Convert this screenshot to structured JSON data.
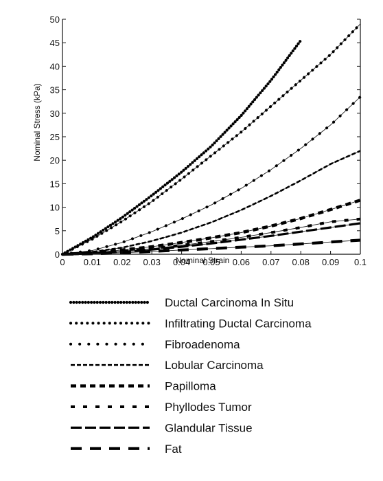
{
  "chart_data": {
    "type": "line",
    "title": "",
    "xlabel": "Nominal Strain",
    "ylabel": "Nominal Stress (kPa)",
    "xlim": [
      0,
      0.1
    ],
    "ylim": [
      0,
      50
    ],
    "x_ticks": [
      0,
      0.01,
      0.02,
      0.03,
      0.04,
      0.05,
      0.06,
      0.07,
      0.08,
      0.09,
      0.1
    ],
    "x_tick_labels": [
      "0",
      "0.01",
      "0.02",
      "0.03",
      "0.04",
      "0.05",
      "0.06",
      "0.07",
      "0.08",
      "0.09",
      "0.1"
    ],
    "y_ticks": [
      0,
      5,
      10,
      15,
      20,
      25,
      30,
      35,
      40,
      45,
      50
    ],
    "y_tick_labels": [
      "0",
      "5",
      "10",
      "15",
      "20",
      "25",
      "30",
      "35",
      "40",
      "45",
      "50"
    ],
    "grid": false,
    "legend_position": "below",
    "x": [
      0,
      0.01,
      0.02,
      0.03,
      0.04,
      0.05,
      0.06,
      0.07,
      0.08,
      0.09,
      0.1
    ],
    "series": [
      {
        "name": "Ductal Carcinoma In Situ",
        "style": "dense-dotted",
        "values": [
          0,
          3.6,
          7.8,
          12.5,
          17.5,
          23.0,
          29.5,
          37.0,
          45.5,
          null,
          null
        ]
      },
      {
        "name": "Infiltrating Ductal Carcinoma",
        "style": "dotted",
        "values": [
          0,
          3.2,
          7.0,
          11.2,
          16.0,
          21.0,
          26.0,
          31.5,
          37.0,
          42.5,
          49.0
        ]
      },
      {
        "name": "Fibroadenoma",
        "style": "sparse-dotted",
        "values": [
          0,
          0.8,
          2.5,
          4.8,
          7.5,
          10.5,
          14.0,
          18.0,
          22.5,
          27.5,
          33.5
        ]
      },
      {
        "name": "Lobular Carcinoma",
        "style": "fine-dashed",
        "values": [
          0,
          0.5,
          1.4,
          2.8,
          4.6,
          6.8,
          9.4,
          12.4,
          15.7,
          19.2,
          22.0
        ]
      },
      {
        "name": "Papilloma",
        "style": "medium-dashed",
        "values": [
          0,
          0.3,
          0.9,
          1.6,
          2.5,
          3.5,
          4.6,
          6.0,
          7.6,
          9.5,
          11.5
        ]
      },
      {
        "name": "Phyllodes Tumor",
        "style": "sparse-dashed",
        "values": [
          0,
          0.2,
          0.6,
          1.2,
          1.9,
          2.7,
          3.6,
          4.6,
          5.7,
          6.9,
          7.5
        ]
      },
      {
        "name": "Glandular Tissue",
        "style": "long-dashed",
        "values": [
          0,
          0.15,
          0.5,
          1.0,
          1.6,
          2.3,
          3.1,
          3.9,
          4.8,
          5.7,
          6.6
        ]
      },
      {
        "name": "Fat",
        "style": "sparse-long-dashed",
        "values": [
          0,
          0.1,
          0.3,
          0.6,
          0.9,
          1.2,
          1.5,
          1.8,
          2.2,
          2.6,
          3.0
        ]
      }
    ]
  }
}
